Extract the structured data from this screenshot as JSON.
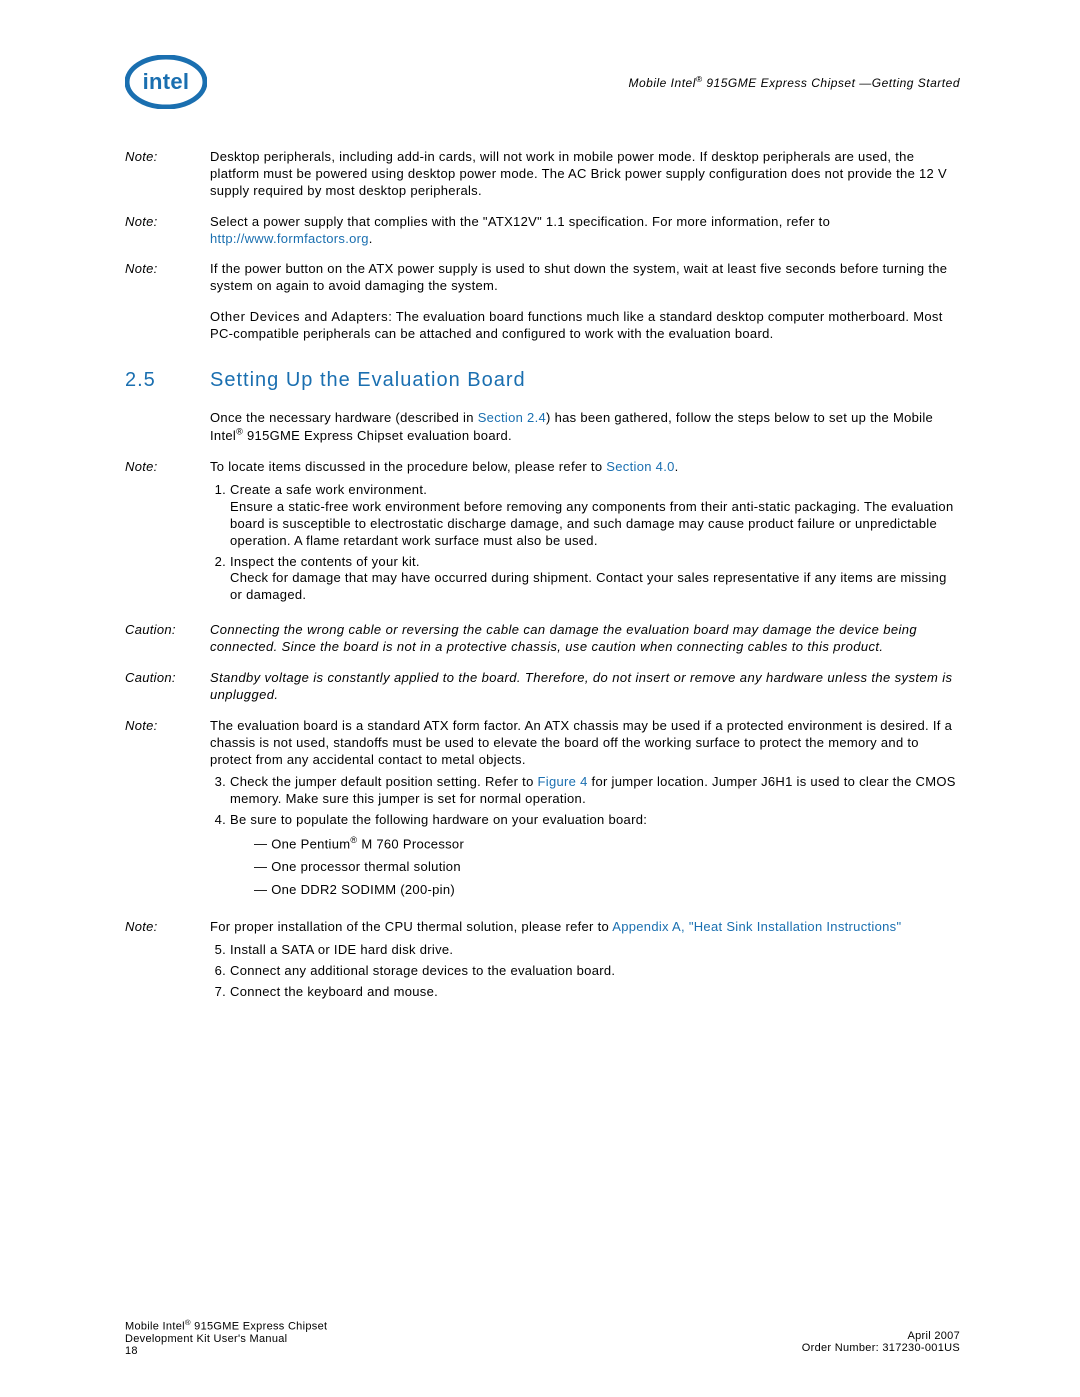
{
  "header": {
    "title_html": "Mobile Intel<sup>®</sup> 915GME Express Chipset —Getting Started"
  },
  "notes": {
    "n1": "Desktop peripherals, including add-in cards, will not work in mobile power mode. If desktop peripherals are used, the platform must be powered using desktop power mode. The AC Brick power supply configuration does not provide the 12 V supply required by most desktop peripherals.",
    "n2_pre": "Select a power supply that complies with the \"ATX12V\" 1.1 specification. For more information, refer to ",
    "n2_link": "http://www.formfactors.org",
    "n2_post": ".",
    "n3": "If the power button on the ATX power supply is used to shut down the system, wait at least five seconds before turning the system on again to avoid damaging the system.",
    "other_bold": "Other Devices and Adapters",
    "other_rest": ": The evaluation board functions much like a standard desktop computer motherboard. Most PC-compatible peripherals can be attached and configured to work with the evaluation board.",
    "intro_pre": "Once the necessary hardware (described in ",
    "intro_link": "Section 2.4",
    "intro_post_html": ") has been gathered, follow the steps below to set up the Mobile Intel<sup>®</sup> 915GME Express Chipset  evaluation board.",
    "n4_pre": "To locate items discussed in the procedure below, please refer to ",
    "n4_link": "Section 4.0",
    "n4_post": ".",
    "caution1": "Connecting the wrong cable or reversing the cable can damage the evaluation board may damage the device being connected. Since the board is not in a protective chassis, use caution when connecting cables to this product.",
    "caution2": "Standby voltage is constantly applied to the board. Therefore, do not insert or remove any hardware unless the system is unplugged.",
    "n5": "The evaluation board is a standard ATX form factor. An ATX chassis may be used if a protected environment is desired. If a chassis is not used, standoffs must be used to elevate the board off the working surface to protect the memory and to protect from any accidental contact to metal objects.",
    "n6_pre": "For proper installation of the CPU thermal solution, please refer to ",
    "n6_link": "Appendix A, \"Heat Sink Installation Instructions\""
  },
  "section": {
    "num": "2.5",
    "title": "Setting Up the Evaluation Board"
  },
  "steps": {
    "s1a": "Create a safe work environment.",
    "s1b": "Ensure a static-free work environment before removing any components from their anti-static packaging. The evaluation board is susceptible to electrostatic discharge damage, and such damage may cause product failure or unpredictable operation. A flame retardant work surface must also be used.",
    "s2a": "Inspect the contents of your kit.",
    "s2b": "Check for damage that may have occurred during shipment. Contact your sales representative if any items are missing or damaged.",
    "s3_pre": "Check the jumper default position setting. Refer to ",
    "s3_link": "Figure 4",
    "s3_post": " for jumper location. Jumper J6H1 is used to clear the CMOS memory. Make sure this jumper is set for normal operation.",
    "s4": "Be sure to populate the following hardware on your evaluation board:",
    "s4_i1_html": "One Pentium<sup>®</sup> M 760 Processor",
    "s4_i2": "One processor thermal solution",
    "s4_i3": "One DDR2 SODIMM (200-pin)",
    "s5": "Install a SATA or IDE hard disk drive.",
    "s6": "Connect any additional storage devices to the evaluation board.",
    "s7": "Connect the keyboard and mouse."
  },
  "labels": {
    "note": "Note:",
    "caution": "Caution:"
  },
  "footer": {
    "left1_html": "Mobile Intel<sup>®</sup> 915GME Express Chipset",
    "left2": "Development Kit User's Manual",
    "left3": "18",
    "right1": "April 2007",
    "right2": "Order Number: 317230-001US"
  },
  "colors": {
    "link": "#1a6fb0"
  }
}
